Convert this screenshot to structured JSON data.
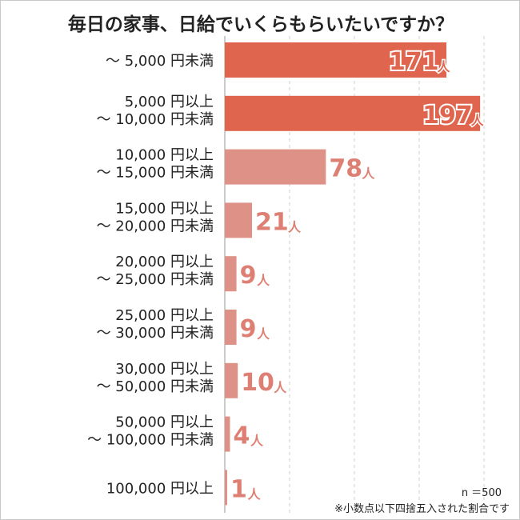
{
  "title": "毎日の家事、日給でいくらもらいたいですか？",
  "notes": {
    "sample": "n ＝500",
    "rounding": "※小数点以下四捨五入された割合です"
  },
  "chart_data": {
    "type": "bar",
    "orientation": "horizontal",
    "title": "毎日の家事、日給でいくらもらいたいですか？",
    "unit": "人",
    "categories": [
      [
        "～ 5,000 円未満"
      ],
      [
        "5,000 円以上",
        "～ 10,000 円未満"
      ],
      [
        "10,000 円以上",
        "～ 15,000 円未満"
      ],
      [
        "15,000 円以上",
        "～ 20,000 円未満"
      ],
      [
        "20,000 円以上",
        "～ 25,000 円未満"
      ],
      [
        "25,000 円以上",
        "～ 30,000 円未満"
      ],
      [
        "30,000 円以上",
        "～ 50,000 円未満"
      ],
      [
        "50,000 円以上",
        "～ 100,000 円未満"
      ],
      [
        "100,000 円以上"
      ]
    ],
    "values": [
      171,
      197,
      78,
      21,
      9,
      9,
      10,
      4,
      1
    ],
    "xlim": [
      0,
      200
    ],
    "grid": true,
    "colors": {
      "top": "#e0654e",
      "rest": "#de9287",
      "label_top": "#e0654e",
      "label_rest": "#de7f73",
      "grid": "#cfcfcf"
    }
  }
}
